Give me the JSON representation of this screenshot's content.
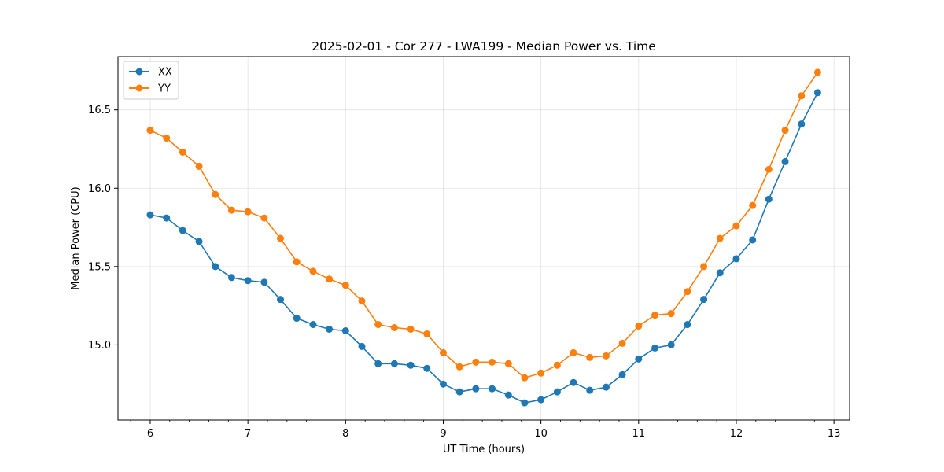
{
  "chart_data": {
    "type": "line",
    "title": "2025-02-01 - Cor 277 - LWA199 - Median Power vs. Time",
    "xlabel": "UT Time (hours)",
    "ylabel": "Median Power (CPU)",
    "xlim": [
      5.67,
      13.16
    ],
    "ylim": [
      14.52,
      16.84
    ],
    "xticks": [
      6,
      7,
      8,
      9,
      10,
      11,
      12,
      13
    ],
    "xtick_labels": [
      "6",
      "7",
      "8",
      "9",
      "10",
      "11",
      "12",
      "13"
    ],
    "yticks": [
      15.0,
      15.5,
      16.0,
      16.5
    ],
    "ytick_labels": [
      "15.0",
      "15.5",
      "16.0",
      "16.5"
    ],
    "grid": true,
    "legend": "top-left",
    "x": [
      6.0,
      6.167,
      6.333,
      6.5,
      6.667,
      6.833,
      7.0,
      7.167,
      7.333,
      7.5,
      7.667,
      7.833,
      8.0,
      8.167,
      8.333,
      8.5,
      8.667,
      8.833,
      9.0,
      9.167,
      9.333,
      9.5,
      9.667,
      9.833,
      10.0,
      10.167,
      10.333,
      10.5,
      10.667,
      10.833,
      11.0,
      11.167,
      11.333,
      11.5,
      11.667,
      11.833,
      12.0,
      12.167,
      12.333,
      12.5,
      12.667,
      12.833
    ],
    "series": [
      {
        "name": "XX",
        "color": "#1f77b4",
        "values": [
          15.83,
          15.81,
          15.73,
          15.66,
          15.5,
          15.43,
          15.41,
          15.4,
          15.29,
          15.17,
          15.13,
          15.1,
          15.09,
          14.99,
          14.88,
          14.88,
          14.87,
          14.85,
          14.75,
          14.7,
          14.72,
          14.72,
          14.68,
          14.63,
          14.65,
          14.7,
          14.76,
          14.71,
          14.73,
          14.81,
          14.91,
          14.98,
          15.0,
          15.13,
          15.29,
          15.46,
          15.55,
          15.67,
          15.93,
          16.17,
          16.41,
          16.61
        ]
      },
      {
        "name": "YY",
        "color": "#ff7f0e",
        "values": [
          16.37,
          16.32,
          16.23,
          16.14,
          15.96,
          15.86,
          15.85,
          15.81,
          15.68,
          15.53,
          15.47,
          15.42,
          15.38,
          15.28,
          15.13,
          15.11,
          15.1,
          15.07,
          14.95,
          14.86,
          14.89,
          14.89,
          14.88,
          14.79,
          14.82,
          14.87,
          14.95,
          14.92,
          14.93,
          15.01,
          15.12,
          15.19,
          15.2,
          15.34,
          15.5,
          15.68,
          15.76,
          15.89,
          16.12,
          16.37,
          16.59,
          16.74
        ]
      }
    ]
  }
}
